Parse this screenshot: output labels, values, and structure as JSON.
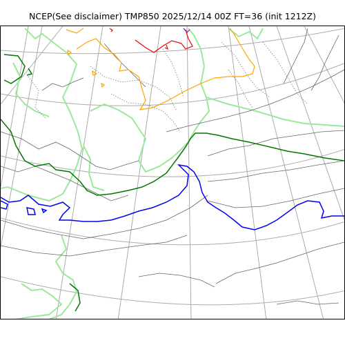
{
  "title": "NCEP(See disclaimer) TMP850 2025/12/14 00Z FT=36 (init 1212Z)",
  "colors": {
    "graticule": "#aaaaaa",
    "coast": "#9be89b",
    "contour_minor": "#666666",
    "contour_dotted": "#777777",
    "isotherm_0": "#0000ee",
    "isotherm_neg6": "#007700",
    "isotherm_warm": "#ffa500",
    "isotherm_hot": "#ee0000",
    "isotherm_extreme": "#aa00aa"
  }
}
